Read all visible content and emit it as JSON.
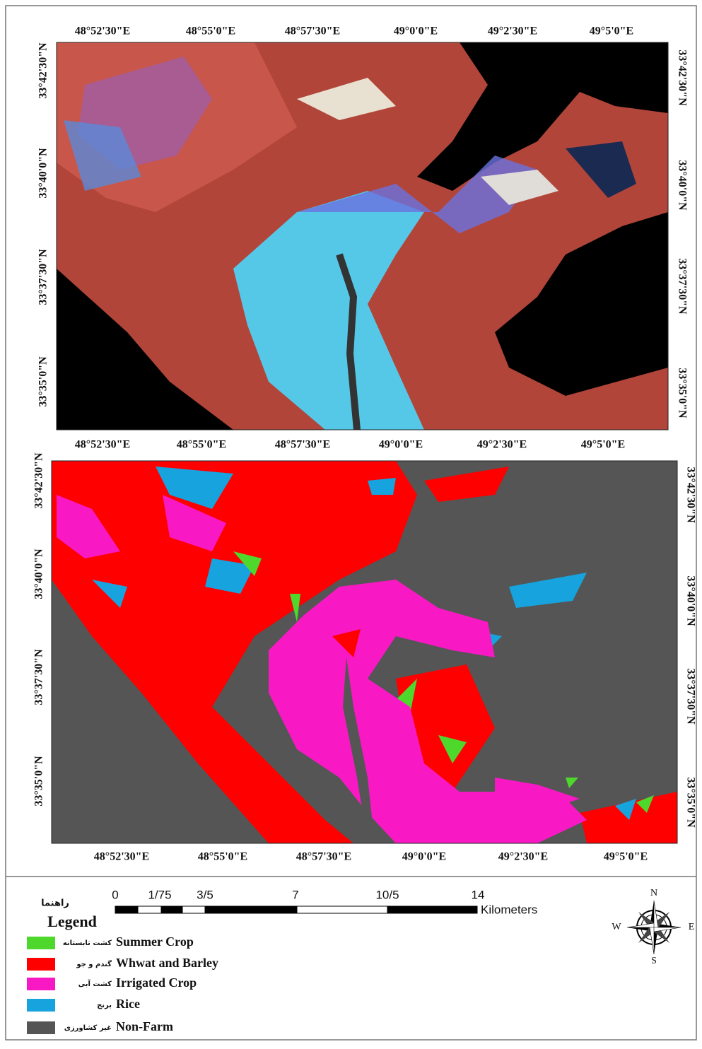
{
  "top_map": {
    "x_labels_top": [
      "48°52'30\"E",
      "48°55'0\"E",
      "48°57'30\"E",
      "49°0'0\"E",
      "49°2'30\"E",
      "49°5'0\"E"
    ],
    "x_labels_bottom": [
      "48°52'30\"E",
      "48°55'0\"E",
      "48°57'30\"E",
      "49°0'0\"E",
      "49°2'30\"E",
      "49°5'0\"E"
    ],
    "y_labels_left": [
      "33°42'30\"N",
      "33°40'0\"N",
      "33°37'30\"N",
      "33°35'0\"N"
    ],
    "y_labels_right": [
      "33°42'30\"N",
      "33°40'0\"N",
      "33°37'30\"N",
      "33°35'0\"N"
    ]
  },
  "bottom_map": {
    "x_labels_bottom": [
      "48°52'30\"E",
      "48°55'0\"E",
      "48°57'30\"E",
      "49°0'0\"E",
      "49°2'30\"E",
      "49°5'0\"E"
    ],
    "y_labels_left": [
      "33°42'30\"N",
      "33°40'0\"N",
      "33°37'30\"N",
      "33°35'0\"N"
    ],
    "y_labels_right": [
      "33°42'30\"N",
      "33°40'0\"N",
      "33°37'30\"N",
      "33°35'0\"N"
    ]
  },
  "scale_bar": {
    "ticks": [
      "0",
      "1/75",
      "3/5",
      "7",
      "10/5",
      "14"
    ],
    "unit": "Kilometers"
  },
  "north_arrow": {
    "north": "N",
    "south": "S",
    "east": "E",
    "west": "W"
  },
  "legend": {
    "title_fa": "راهنما",
    "title": "Legend",
    "items": [
      {
        "label_fa": "کشت تابستانه",
        "label": "Summer Crop",
        "color": "#4fd82c"
      },
      {
        "label_fa": "گندم و جو",
        "label": "Whwat and Barley",
        "color": "#fe0000"
      },
      {
        "label_fa": "کشت آبی",
        "label": "Irrigated Crop",
        "color": "#f819c4"
      },
      {
        "label_fa": "برنج",
        "label": "Rice",
        "color": "#17a3dd"
      },
      {
        "label_fa": "غیر کشاورزی",
        "label": "Non-Farm",
        "color": "#555555"
      }
    ]
  }
}
